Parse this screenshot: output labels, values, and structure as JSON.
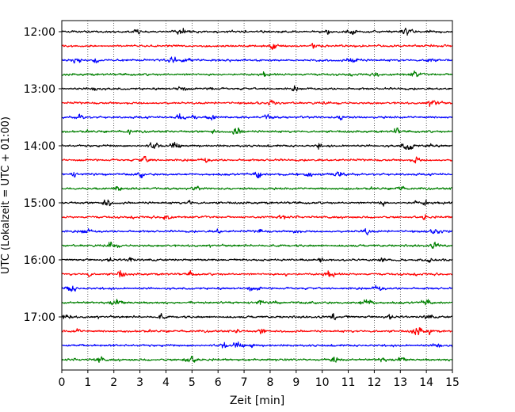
{
  "chart_data": {
    "type": "line",
    "title": "",
    "xlabel": "Zeit  [min]",
    "ylabel": "UTC (Lokalzeit = UTC + 01:00)",
    "xlim": [
      0,
      15
    ],
    "xticks": [
      0,
      1,
      2,
      3,
      4,
      5,
      6,
      7,
      8,
      9,
      10,
      11,
      12,
      13,
      14,
      15
    ],
    "ytick_labels": [
      "12:00",
      "13:00",
      "14:00",
      "15:00",
      "16:00",
      "17:00"
    ],
    "grid": "vertical dotted",
    "trace_interval_minutes": 15,
    "start_utc": "12:00",
    "end_utc": "17:45",
    "trace_color_cycle": [
      "#000000",
      "#ff0000",
      "#0000ff",
      "#008000"
    ],
    "series": [
      {
        "time": "12:00",
        "color": "#000000"
      },
      {
        "time": "12:15",
        "color": "#ff0000"
      },
      {
        "time": "12:30",
        "color": "#0000ff"
      },
      {
        "time": "12:45",
        "color": "#008000"
      },
      {
        "time": "13:00",
        "color": "#000000"
      },
      {
        "time": "13:15",
        "color": "#ff0000"
      },
      {
        "time": "13:30",
        "color": "#0000ff"
      },
      {
        "time": "13:45",
        "color": "#008000"
      },
      {
        "time": "14:00",
        "color": "#000000"
      },
      {
        "time": "14:15",
        "color": "#ff0000"
      },
      {
        "time": "14:30",
        "color": "#0000ff"
      },
      {
        "time": "14:45",
        "color": "#008000"
      },
      {
        "time": "15:00",
        "color": "#000000"
      },
      {
        "time": "15:15",
        "color": "#ff0000"
      },
      {
        "time": "15:30",
        "color": "#0000ff"
      },
      {
        "time": "15:45",
        "color": "#008000"
      },
      {
        "time": "16:00",
        "color": "#000000"
      },
      {
        "time": "16:15",
        "color": "#ff0000"
      },
      {
        "time": "16:30",
        "color": "#0000ff"
      },
      {
        "time": "16:45",
        "color": "#008000"
      },
      {
        "time": "17:00",
        "color": "#000000"
      },
      {
        "time": "17:15",
        "color": "#ff0000"
      },
      {
        "time": "17:30",
        "color": "#0000ff"
      },
      {
        "time": "17:45",
        "color": "#008000"
      }
    ]
  }
}
